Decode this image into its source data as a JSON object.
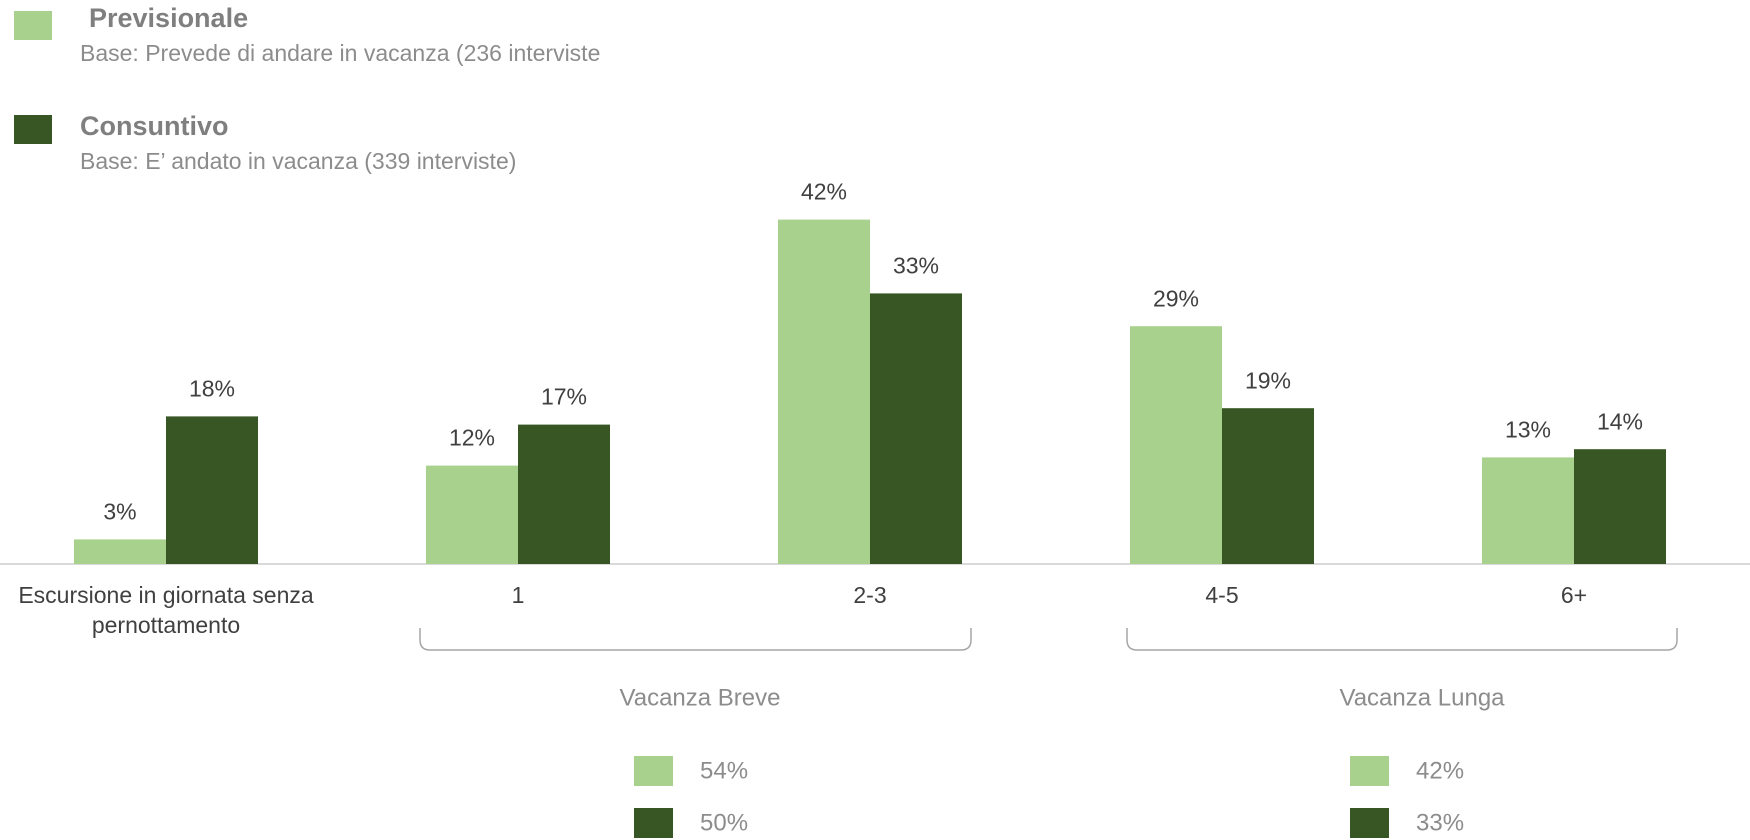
{
  "chart_data": {
    "type": "bar",
    "categories": [
      "Escursione in giornata senza pernottamento",
      "1",
      "2-3",
      "4-5",
      "6+"
    ],
    "series": [
      {
        "name": "Previsionale",
        "base": "Base: Prevede di andare in vacanza (236 interviste",
        "color": "#a9d18e",
        "values": [
          3,
          12,
          42,
          29,
          13
        ],
        "value_labels": [
          "3%",
          "12%",
          "42%",
          "29%",
          "13%"
        ]
      },
      {
        "name": "Consuntivo",
        "base": "Base: E’ andato in vacanza (339 interviste)",
        "color": "#375623",
        "values": [
          18,
          17,
          33,
          19,
          14
        ],
        "value_labels": [
          "18%",
          "17%",
          "33%",
          "19%",
          "14%"
        ]
      }
    ],
    "groups": [
      {
        "label": "Vacanza Breve",
        "values": [
          54,
          50
        ],
        "value_labels": [
          "54%",
          "50%"
        ]
      },
      {
        "label": "Vacanza Lunga",
        "values": [
          42,
          33
        ],
        "value_labels": [
          "42%",
          "33%"
        ]
      }
    ]
  }
}
